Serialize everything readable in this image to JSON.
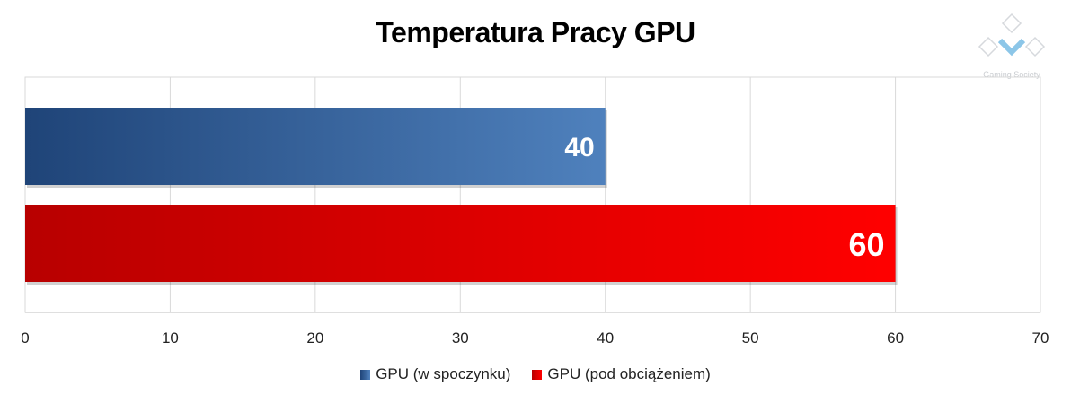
{
  "chart_data": {
    "type": "bar",
    "orientation": "horizontal",
    "title": "Temperatura Pracy GPU",
    "xlabel": "",
    "ylabel": "",
    "xlim": [
      0,
      70
    ],
    "xticks": [
      0,
      10,
      20,
      30,
      40,
      50,
      60,
      70
    ],
    "grid": true,
    "legend_position": "bottom",
    "series": [
      {
        "name": "GPU (w spoczynku)",
        "value": 40,
        "label": "40",
        "color_start": "#1f4478",
        "color_end": "#4f81bd"
      },
      {
        "name": "GPU (pod obciążeniem)",
        "value": 60,
        "label": "60",
        "color_start": "#b80000",
        "color_end": "#ff0000"
      }
    ]
  },
  "watermark": {
    "text": "Gaming Society",
    "icon": "gaming-society-logo"
  }
}
